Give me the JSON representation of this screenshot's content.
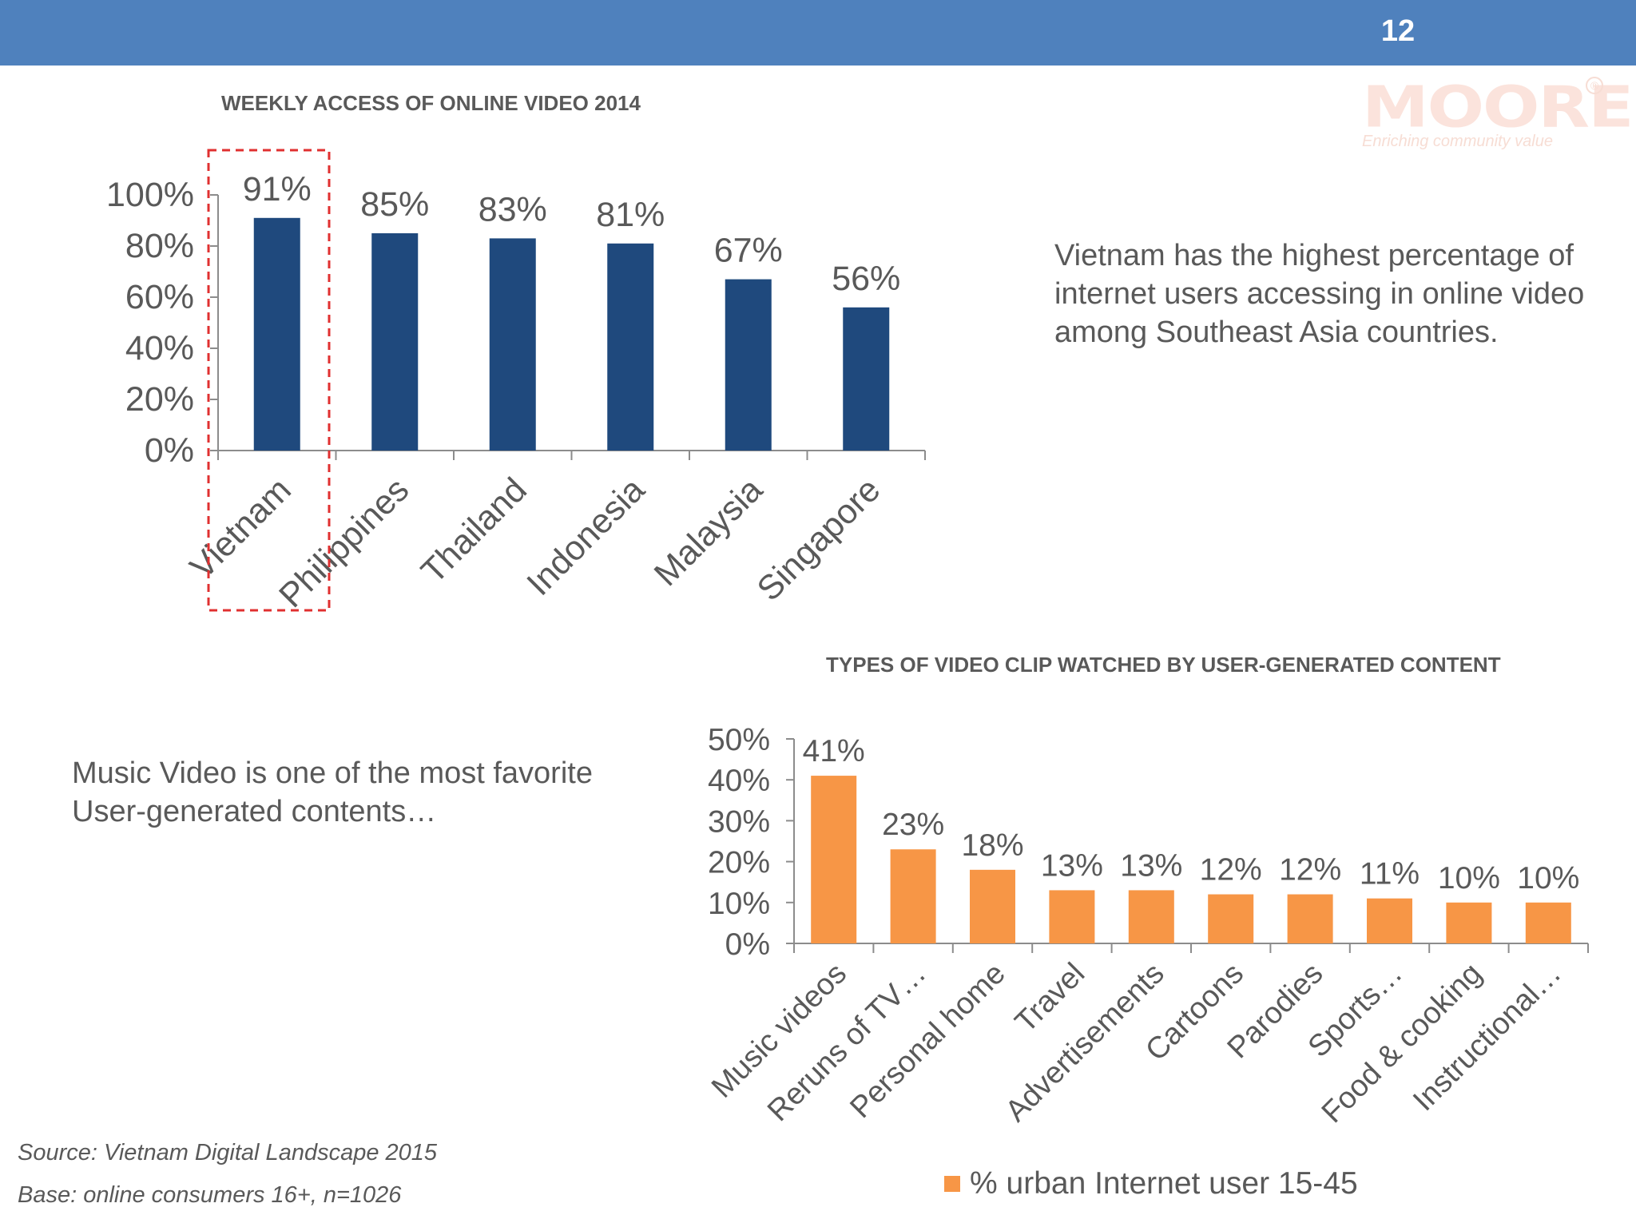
{
  "header": {
    "page_number": "12"
  },
  "logo": {
    "name": "MOORE",
    "tagline": "Enriching community value",
    "reg_mark": "®"
  },
  "insights": {
    "video_access": "Vietnam has the highest percentage of internet users accessing in online video among Southeast Asia countries.",
    "music_video": "Music Video is one of the most favorite User-generated contents…"
  },
  "footnotes": {
    "source": "Source: Vietnam Digital Landscape 2015",
    "base": "Base: online consumers 16+, n=1026"
  },
  "legend": {
    "label": "% urban Internet user 15-45"
  },
  "colors": {
    "header": "#4f81bd",
    "bar_blue": "#1f497d",
    "bar_orange": "#f79646",
    "highlight": "#e03030"
  },
  "chart_data": [
    {
      "type": "bar",
      "title": "WEEKLY ACCESS OF ONLINE VIDEO 2014",
      "categories": [
        "Vietnam",
        "Philippines",
        "Thailand",
        "Indonesia",
        "Malaysia",
        "Singapore"
      ],
      "values": [
        91,
        85,
        83,
        81,
        67,
        56
      ],
      "data_labels": [
        "91%",
        "85%",
        "83%",
        "81%",
        "67%",
        "56%"
      ],
      "yticks": [
        "0%",
        "20%",
        "40%",
        "60%",
        "80%",
        "100%"
      ],
      "ylim": [
        0,
        100
      ],
      "highlight_category": "Vietnam",
      "grid": false
    },
    {
      "type": "bar",
      "title": "TYPES OF VIDEO CLIP WATCHED BY USER-GENERATED CONTENT",
      "categories": [
        "Music videos",
        "Reruns of TV…",
        "Personal home",
        "Travel",
        "Advertisements",
        "Cartoons",
        "Parodies",
        "Sports…",
        "Food & cooking",
        "Instructional…"
      ],
      "values": [
        41,
        23,
        18,
        13,
        13,
        12,
        12,
        11,
        10,
        10
      ],
      "data_labels": [
        "41%",
        "23%",
        "18%",
        "13%",
        "13%",
        "12%",
        "12%",
        "11%",
        "10%",
        "10%"
      ],
      "yticks": [
        "0%",
        "10%",
        "20%",
        "30%",
        "40%",
        "50%"
      ],
      "ylim": [
        0,
        50
      ],
      "legend": "bottom",
      "grid": false
    }
  ]
}
